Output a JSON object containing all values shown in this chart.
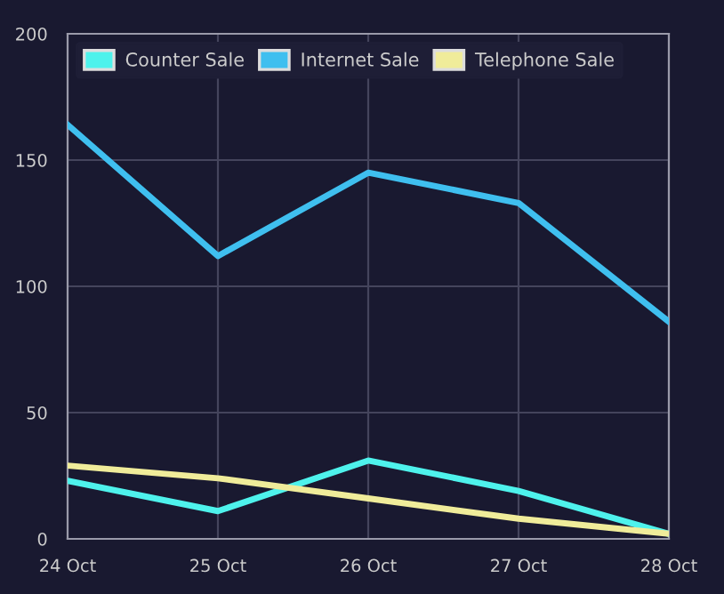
{
  "chart_data": {
    "type": "line",
    "categories": [
      "24 Oct",
      "25 Oct",
      "26 Oct",
      "27 Oct",
      "28 Oct"
    ],
    "series": [
      {
        "name": "Counter Sale",
        "color": "#4ef2ec",
        "values": [
          23,
          11,
          31,
          19,
          2
        ]
      },
      {
        "name": "Internet Sale",
        "color": "#3fbfef",
        "values": [
          164,
          112,
          145,
          133,
          86
        ]
      },
      {
        "name": "Telephone Sale",
        "color": "#f0ec9a",
        "values": [
          29,
          24,
          16,
          8,
          2
        ]
      }
    ],
    "ylim": [
      0,
      200
    ],
    "yticks": [
      0,
      50,
      100,
      150,
      200
    ],
    "grid": true,
    "legend": "top left",
    "marker": "none",
    "line_style": "solid"
  }
}
